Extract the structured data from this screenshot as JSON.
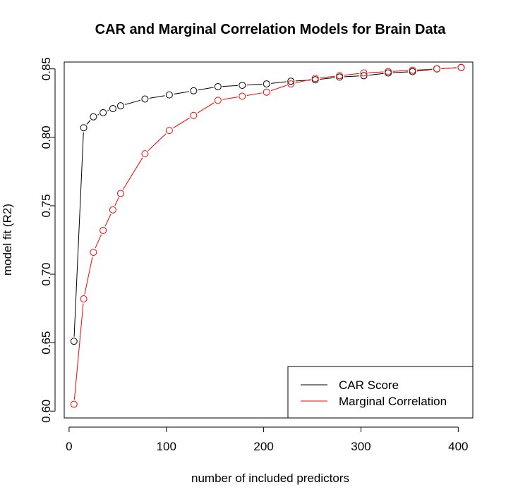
{
  "chart_data": {
    "type": "line",
    "title": "CAR and Marginal Correlation Models for Brain Data",
    "xlabel": "number of included predictors",
    "ylabel": "model fit (R2)",
    "xlim": [
      -5,
      415
    ],
    "ylim": [
      0.595,
      0.855
    ],
    "x_ticks": [
      0,
      100,
      200,
      300,
      400
    ],
    "x_tick_labels": [
      "0",
      "100",
      "200",
      "300",
      "400"
    ],
    "y_ticks": [
      0.6,
      0.65,
      0.7,
      0.75,
      0.8,
      0.85
    ],
    "y_tick_labels": [
      "0.60",
      "0.65",
      "0.70",
      "0.75",
      "0.80",
      "0.85"
    ],
    "grid": false,
    "legend_position": "bottom-right",
    "series": [
      {
        "name": "CAR Score",
        "color": "#000000",
        "x": [
          5,
          15,
          25,
          35,
          45,
          53,
          78,
          103,
          128,
          153,
          178,
          203,
          228,
          253,
          278,
          303,
          328,
          353,
          378,
          403
        ],
        "y": [
          0.651,
          0.807,
          0.815,
          0.818,
          0.821,
          0.823,
          0.828,
          0.831,
          0.834,
          0.837,
          0.838,
          0.839,
          0.841,
          0.842,
          0.844,
          0.845,
          0.847,
          0.848,
          0.85,
          0.851
        ]
      },
      {
        "name": "Marginal Correlation",
        "color": "#ff0000",
        "x": [
          5,
          15,
          25,
          35,
          45,
          53,
          78,
          103,
          128,
          153,
          178,
          203,
          228,
          253,
          278,
          303,
          328,
          353,
          378,
          403
        ],
        "y": [
          0.605,
          0.682,
          0.716,
          0.732,
          0.747,
          0.759,
          0.788,
          0.805,
          0.816,
          0.827,
          0.83,
          0.833,
          0.839,
          0.843,
          0.845,
          0.847,
          0.848,
          0.849,
          0.85,
          0.851
        ]
      }
    ]
  }
}
